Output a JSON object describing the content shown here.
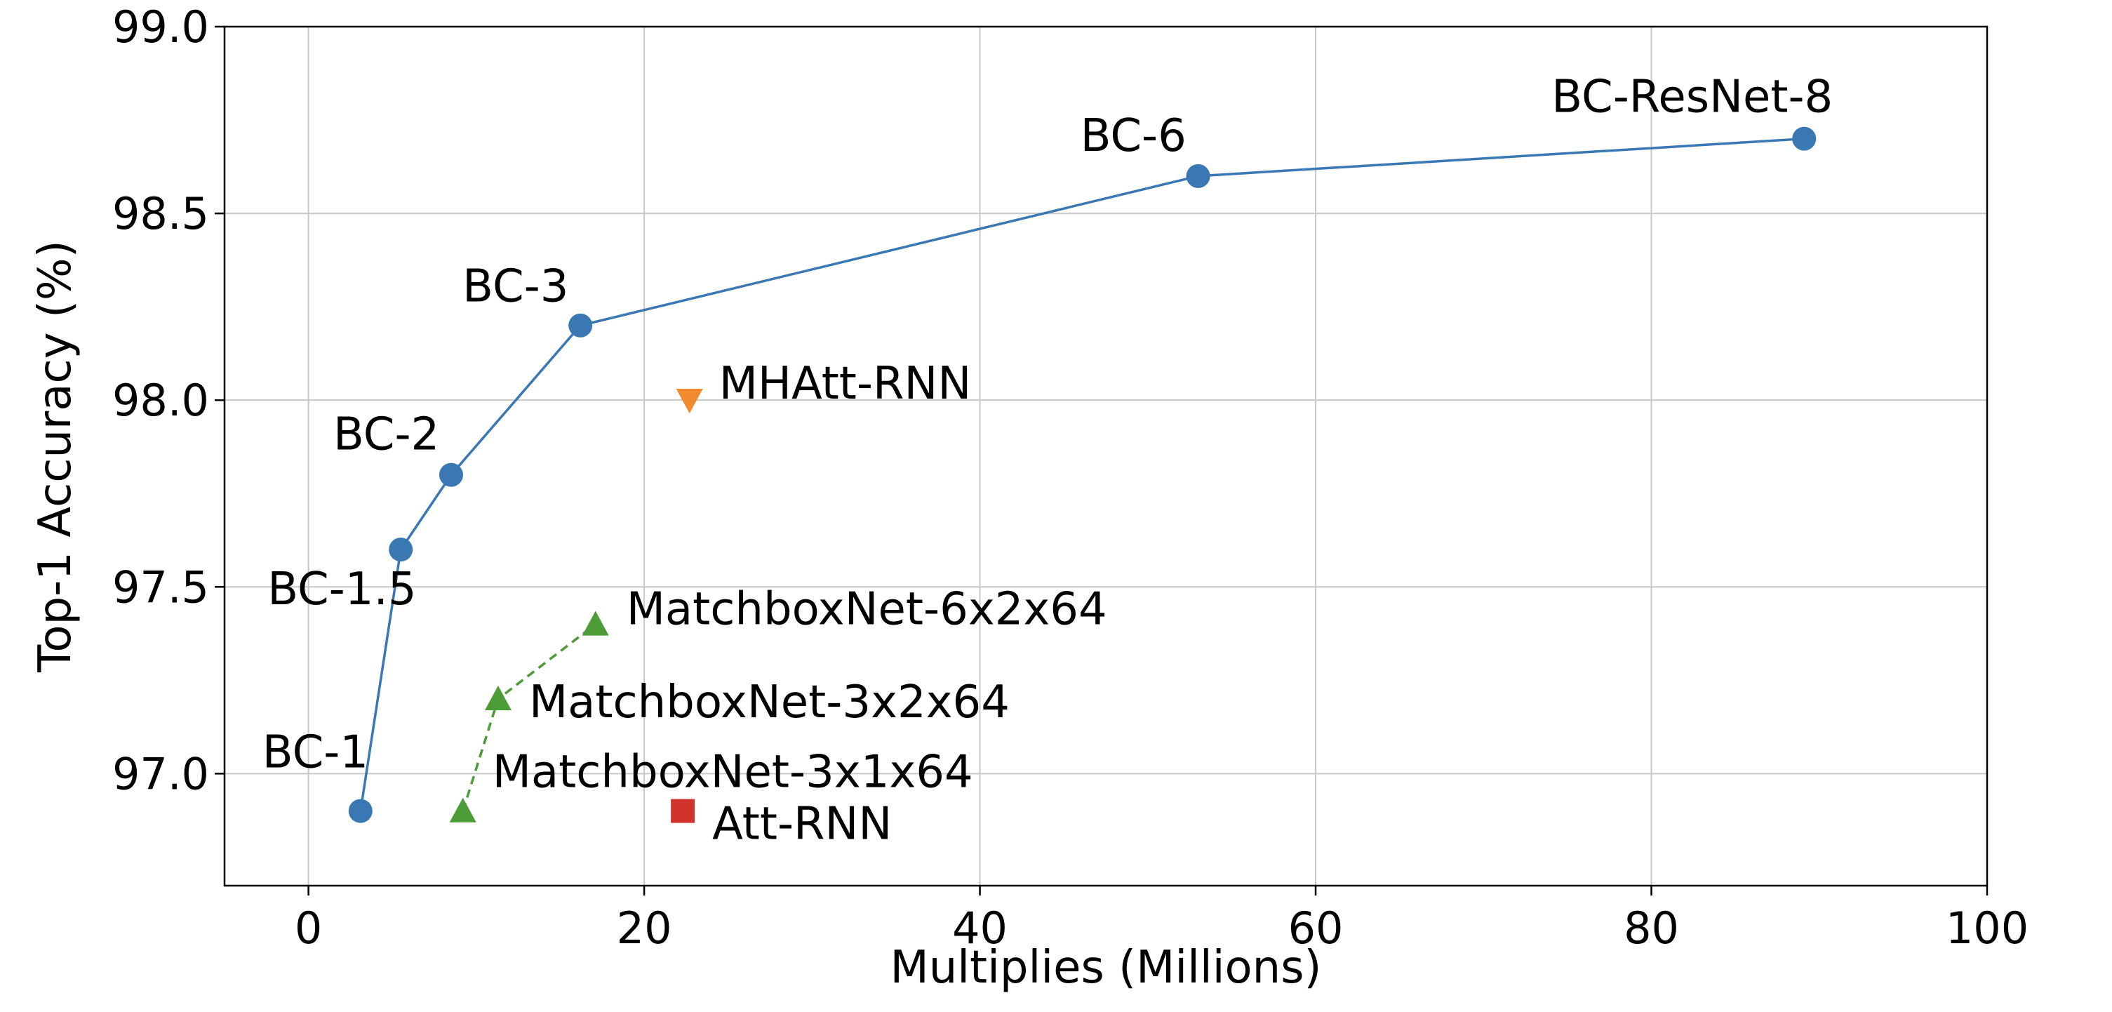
{
  "chart_data": {
    "type": "scatter",
    "title": "",
    "xlabel": "Multiplies (Millions)",
    "ylabel": "Top-1 Accuracy (%)",
    "xlim": [
      -5,
      100
    ],
    "ylim": [
      96.7,
      99.0
    ],
    "xticks": [
      0,
      20,
      40,
      60,
      80,
      100
    ],
    "xtick_labels": [
      "0",
      "20",
      "40",
      "60",
      "80",
      "100"
    ],
    "yticks": [
      97.0,
      97.5,
      98.0,
      98.5,
      99.0
    ],
    "ytick_labels": [
      "97.0",
      "97.5",
      "98.0",
      "98.5",
      "99.0"
    ],
    "grid": true,
    "legend": "none",
    "series": [
      {
        "color": "#3a78b4",
        "marker": "circle",
        "line": "solid",
        "points": [
          {
            "label": "BC-1",
            "x": 3.1,
            "y": 96.9
          },
          {
            "label": "BC-1.5",
            "x": 5.5,
            "y": 97.6
          },
          {
            "label": "BC-2",
            "x": 8.5,
            "y": 97.8
          },
          {
            "label": "BC-3",
            "x": 16.2,
            "y": 98.2
          },
          {
            "label": "BC-6",
            "x": 53.0,
            "y": 98.6
          },
          {
            "label": "BC-ResNet-8",
            "x": 89.1,
            "y": 98.7
          }
        ]
      },
      {
        "color": "#4c9c38",
        "marker": "triangle-up",
        "line": "dashed",
        "points": [
          {
            "label": "MatchboxNet-3x1x64",
            "x": 9.2,
            "y": 96.9
          },
          {
            "label": "MatchboxNet-3x2x64",
            "x": 11.3,
            "y": 97.2
          },
          {
            "label": "MatchboxNet-6x2x64",
            "x": 17.1,
            "y": 97.4
          }
        ]
      },
      {
        "color": "#f28a30",
        "marker": "triangle-down",
        "line": "none",
        "points": [
          {
            "label": "MHAtt-RNN",
            "x": 22.7,
            "y": 98.0
          }
        ]
      },
      {
        "color": "#d0342c",
        "marker": "square",
        "line": "none",
        "points": [
          {
            "label": "Att-RNN",
            "x": 22.3,
            "y": 96.9
          }
        ]
      }
    ]
  }
}
